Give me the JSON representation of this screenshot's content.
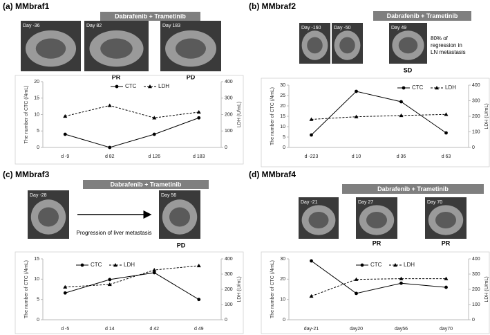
{
  "chart_data": [
    {
      "type": "line",
      "title": "(a) MMbraf1",
      "banner": "Dabrafenib + Trametinib",
      "images": [
        "Day -36",
        "Day 82",
        "Day 183"
      ],
      "responses": [
        "",
        "PR",
        "PD"
      ],
      "notes": [],
      "categories": [
        "d -9",
        "d 82",
        "d 126",
        "d 183"
      ],
      "ylabel": "The number of CTC (/4mL)",
      "y2label": "LDH (U/mL)",
      "ylim": [
        0,
        20
      ],
      "yticks": [
        0,
        5,
        10,
        15,
        20
      ],
      "y2lim": [
        0,
        400
      ],
      "y2ticks": [
        0,
        100,
        200,
        300,
        400
      ],
      "series": [
        {
          "name": "CTC",
          "color": "#000000",
          "marker": "circle",
          "line_style": "solid",
          "values": [
            4,
            0,
            4,
            9
          ]
        },
        {
          "name": "LDH",
          "color": "#000000",
          "marker": "triangle",
          "line_style": "dashed",
          "axis": "y2",
          "values": [
            190,
            255,
            180,
            215
          ]
        }
      ]
    },
    {
      "type": "line",
      "title": "(b) MMbraf2",
      "banner": "Dabrafenib + Trametinib",
      "images": [
        "Day -160",
        "Day -50",
        "Day 49"
      ],
      "responses": [
        "",
        "",
        "SD"
      ],
      "notes": [
        "80% of",
        "regression in",
        "LN metastasis"
      ],
      "categories": [
        "d -223",
        "d 10",
        "d 36",
        "d 63"
      ],
      "ylabel": "The number of CTC (/4mL)",
      "y2label": "LDH (U/mL)",
      "ylim": [
        0,
        30
      ],
      "yticks": [
        0,
        5,
        10,
        15,
        20,
        25,
        30
      ],
      "y2lim": [
        0,
        400
      ],
      "y2ticks": [
        0,
        100,
        200,
        300,
        400
      ],
      "series": [
        {
          "name": "CTC",
          "color": "#000000",
          "marker": "circle",
          "line_style": "solid",
          "values": [
            6,
            27,
            22,
            7
          ]
        },
        {
          "name": "LDH",
          "color": "#000000",
          "marker": "triangle",
          "line_style": "dashed",
          "axis": "y2",
          "values": [
            180,
            197,
            205,
            212
          ]
        }
      ]
    },
    {
      "type": "line",
      "title": "(c) MMbraf3",
      "banner": "Dabrafenib + Trametinib",
      "images": [
        "Day -28",
        "Day 56"
      ],
      "responses": [
        "",
        "PD"
      ],
      "notes": [
        "Progression of liver metastasis"
      ],
      "categories": [
        "d -5",
        "d 14",
        "d 42",
        "d 49"
      ],
      "ylabel": "The number of CTC (/4mL)",
      "y2label": "LDH (U/mL)",
      "ylim": [
        0,
        15
      ],
      "yticks": [
        0,
        5,
        10,
        15
      ],
      "y2lim": [
        0,
        400
      ],
      "y2ticks": [
        0,
        100,
        200,
        300,
        400
      ],
      "series": [
        {
          "name": "CTC",
          "color": "#000000",
          "marker": "circle",
          "line_style": "solid",
          "values": [
            6.6,
            9.9,
            11.6,
            5
          ]
        },
        {
          "name": "LDH",
          "color": "#000000",
          "marker": "triangle",
          "line_style": "dashed",
          "axis": "y2",
          "values": [
            215,
            232,
            327,
            355
          ]
        }
      ]
    },
    {
      "type": "line",
      "title": "(d) MMbraf4",
      "banner": "Dabrafenib + Trametinib",
      "images": [
        "Day -21",
        "Day 27",
        "Day 70"
      ],
      "responses": [
        "",
        "PR",
        "PR"
      ],
      "notes": [],
      "categories": [
        "day-21",
        "day20",
        "day56",
        "day70"
      ],
      "ylabel": "The number of CTC (/4mL)",
      "y2label": "LDH (U/mL)",
      "ylim": [
        0,
        30
      ],
      "yticks": [
        0,
        10,
        20,
        30
      ],
      "y2lim": [
        0,
        400
      ],
      "y2ticks": [
        0,
        100,
        200,
        300,
        400
      ],
      "series": [
        {
          "name": "CTC",
          "color": "#000000",
          "marker": "circle",
          "line_style": "solid",
          "values": [
            29,
            13,
            18,
            16
          ]
        },
        {
          "name": "LDH",
          "color": "#000000",
          "marker": "triangle",
          "line_style": "dashed",
          "axis": "y2",
          "values": [
            155,
            265,
            270,
            270
          ]
        }
      ]
    }
  ]
}
